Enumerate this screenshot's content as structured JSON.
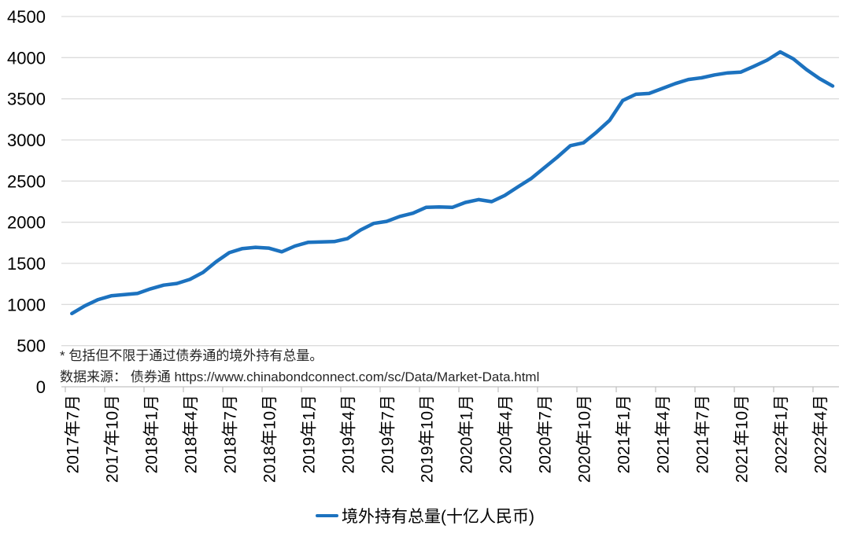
{
  "chart_data": {
    "type": "line",
    "title": "",
    "xlabel": "",
    "ylabel": "",
    "ylim": [
      0,
      4500
    ],
    "yticks": [
      0,
      500,
      1000,
      1500,
      2000,
      2500,
      3000,
      3500,
      4000,
      4500
    ],
    "xtick_every": 3,
    "grid": "horizontal",
    "legend_position": "bottom",
    "x": [
      "2017年7月",
      "2017年8月",
      "2017年9月",
      "2017年10月",
      "2017年11月",
      "2017年12月",
      "2018年1月",
      "2018年2月",
      "2018年3月",
      "2018年4月",
      "2018年5月",
      "2018年6月",
      "2018年7月",
      "2018年8月",
      "2018年9月",
      "2018年10月",
      "2018年11月",
      "2018年12月",
      "2019年1月",
      "2019年2月",
      "2019年3月",
      "2019年4月",
      "2019年5月",
      "2019年6月",
      "2019年7月",
      "2019年8月",
      "2019年9月",
      "2019年10月",
      "2019年11月",
      "2019年12月",
      "2020年1月",
      "2020年2月",
      "2020年3月",
      "2020年4月",
      "2020年5月",
      "2020年6月",
      "2020年7月",
      "2020年8月",
      "2020年9月",
      "2020年10月",
      "2020年11月",
      "2020年12月",
      "2021年1月",
      "2021年2月",
      "2021年3月",
      "2021年4月",
      "2021年5月",
      "2021年6月",
      "2021年7月",
      "2021年8月",
      "2021年9月",
      "2021年10月",
      "2021年11月",
      "2021年12月",
      "2022年1月",
      "2022年2月",
      "2022年3月",
      "2022年4月",
      "2022年5月"
    ],
    "series": [
      {
        "name": "境外持有总量(十亿人民币)",
        "values": [
          890,
          985,
          1060,
          1105,
          1120,
          1135,
          1190,
          1235,
          1255,
          1305,
          1390,
          1520,
          1630,
          1680,
          1695,
          1685,
          1640,
          1710,
          1755,
          1760,
          1765,
          1800,
          1905,
          1985,
          2010,
          2070,
          2110,
          2180,
          2185,
          2180,
          2240,
          2275,
          2250,
          2325,
          2430,
          2530,
          2660,
          2790,
          2930,
          2965,
          3095,
          3240,
          3480,
          3555,
          3565,
          3625,
          3685,
          3735,
          3755,
          3790,
          3815,
          3825,
          3895,
          3970,
          4070,
          3985,
          3855,
          3745,
          3655
        ]
      }
    ]
  },
  "annotations": {
    "note": "* 包括但不限于通过债券通的境外持有总量。",
    "source": "数据来源： 债券通 https://www.chinabondconnect.com/sc/Data/Market-Data.html"
  },
  "legend": {
    "label": "境外持有总量(十亿人民币)"
  },
  "colors": {
    "line": "#1c72bf",
    "gridline": "#dcdcdc",
    "axis": "#c2c2c2",
    "tick_label": "#000000",
    "note_text": "#262626"
  }
}
